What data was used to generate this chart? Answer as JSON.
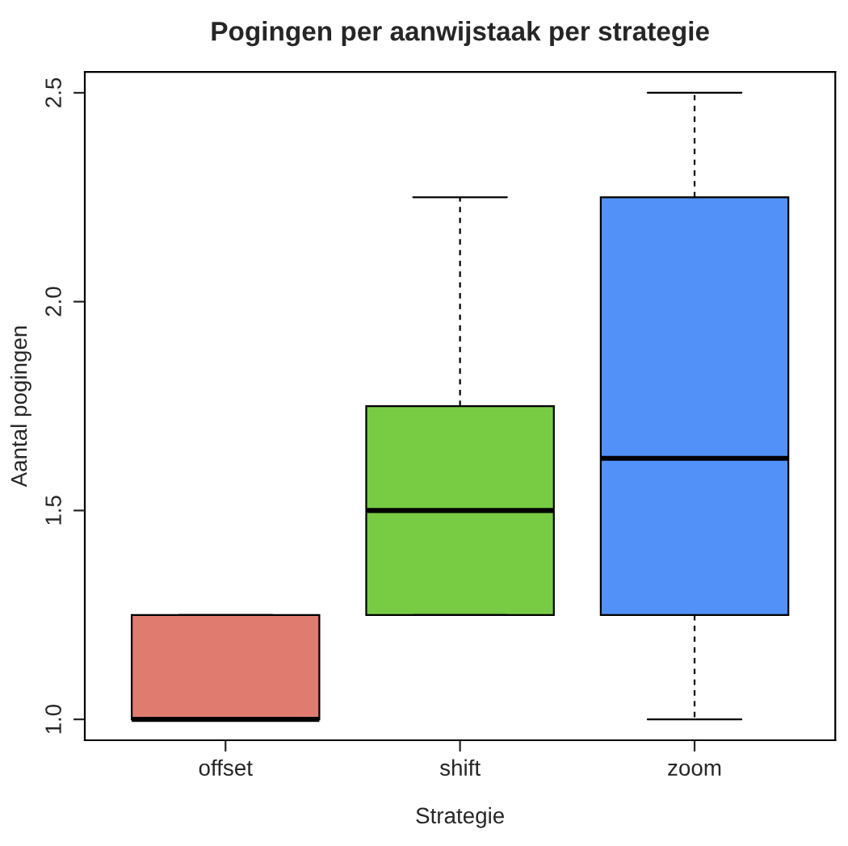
{
  "chart_data": {
    "type": "box",
    "title": "Pogingen per aanwijstaak per strategie",
    "xlabel": "Strategie",
    "ylabel": "Aantal pogingen",
    "categories": [
      "offset",
      "shift",
      "zoom"
    ],
    "colors": [
      "#e07b70",
      "#77cc44",
      "#5291f8"
    ],
    "boxes": [
      {
        "low": 1.0,
        "q1": 1.0,
        "median": 1.0,
        "q3": 1.25,
        "high": 1.25
      },
      {
        "low": 1.25,
        "q1": 1.25,
        "median": 1.5,
        "q3": 1.75,
        "high": 2.25
      },
      {
        "low": 1.0,
        "q1": 1.25,
        "median": 1.625,
        "q3": 2.25,
        "high": 2.5
      }
    ],
    "ylim": [
      0.95,
      2.55
    ],
    "yticks": [
      {
        "value": 1.0,
        "label": "1.0"
      },
      {
        "value": 1.5,
        "label": "1.5"
      },
      {
        "value": 2.0,
        "label": "2.0"
      },
      {
        "value": 2.5,
        "label": "2.5"
      }
    ],
    "grid": false,
    "legend": false
  }
}
